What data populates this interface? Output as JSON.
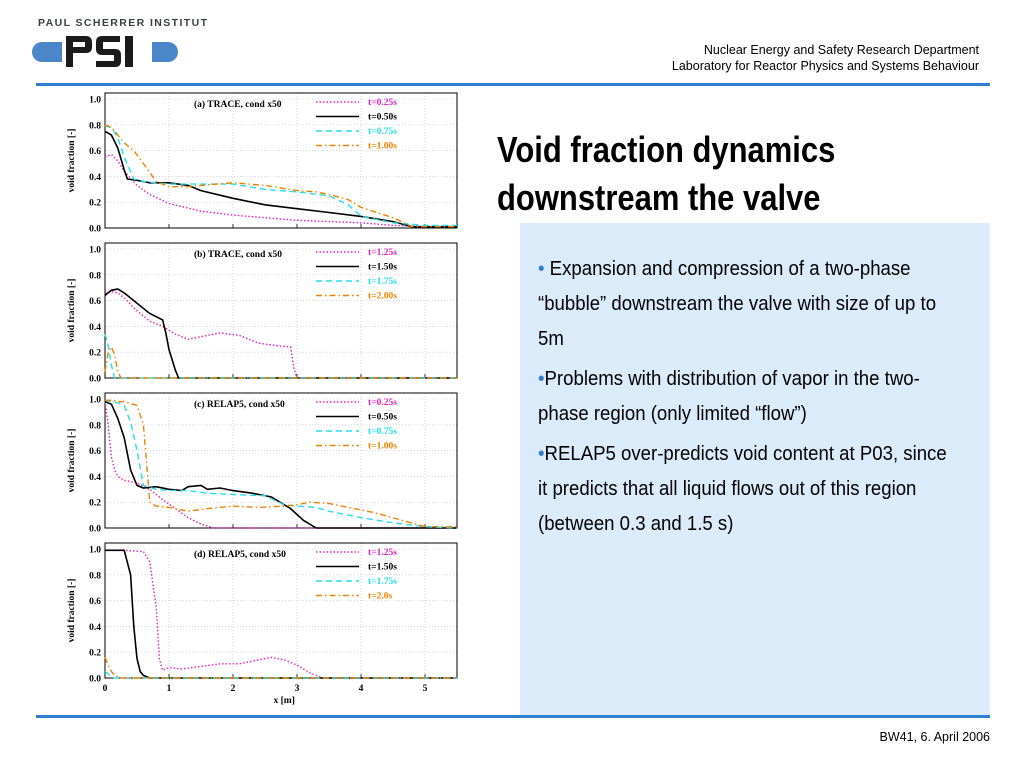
{
  "header": {
    "logo_text": "PAUL SCHERRER INSTITUT",
    "logo_mark": "PSI",
    "department_line1": "Nuclear Energy and Safety Research Department",
    "department_line2": "Laboratory for Reactor Physics and Systems Behaviour"
  },
  "title": {
    "line1": "Void fraction dynamics",
    "line2": "downstream the valve"
  },
  "bullets": [
    {
      "marker": "• ",
      "text": "Expansion and compression of a two-phase “bubble” downstream the valve with size of up to 5m"
    },
    {
      "marker": "•",
      "text": "Problems with distribution of vapor in the two-phase region (only limited “flow”)"
    },
    {
      "marker": "•",
      "text": "RELAP5 over-predicts void content at P03, since it predicts that all liquid flows out of this region (between 0.3 and 1.5 s)"
    }
  ],
  "footer": {
    "text": "BW41, 6. April 2006"
  },
  "colors": {
    "accent": "#2f7fd0",
    "panel": "#dcebfa",
    "magenta": "#e020c0",
    "black": "#000000",
    "cyan": "#20e0e8",
    "orange": "#f08000"
  },
  "chart_data": [
    {
      "type": "line",
      "title": "(a) TRACE, cond x50",
      "ylabel": "void fraction [-]",
      "xlim": [
        0,
        5.5
      ],
      "ylim": [
        0,
        1.0
      ],
      "yticks": [
        "0.0",
        "0.2",
        "0.4",
        "0.6",
        "0.8",
        "1.0"
      ],
      "series": [
        {
          "name": "t=0.25s",
          "style": "dotted",
          "color": "#e020c0",
          "x": [
            0,
            0.1,
            0.2,
            0.3,
            0.5,
            0.7,
            1.0,
            1.5,
            2.0,
            2.5,
            3.0,
            3.5,
            4.0,
            4.5,
            5.0,
            5.5
          ],
          "y": [
            0.55,
            0.57,
            0.52,
            0.44,
            0.33,
            0.26,
            0.19,
            0.13,
            0.1,
            0.08,
            0.06,
            0.05,
            0.04,
            0.02,
            0.01,
            0.01
          ]
        },
        {
          "name": "t=0.50s",
          "style": "solid",
          "color": "#000000",
          "x": [
            0,
            0.1,
            0.2,
            0.3,
            0.35,
            0.5,
            0.7,
            1.0,
            1.3,
            1.5,
            2.0,
            2.5,
            3.0,
            3.5,
            4.0,
            4.5,
            4.8,
            5.5
          ],
          "y": [
            0.75,
            0.72,
            0.62,
            0.45,
            0.38,
            0.37,
            0.35,
            0.35,
            0.33,
            0.29,
            0.23,
            0.18,
            0.15,
            0.12,
            0.09,
            0.05,
            0.01,
            0.01
          ]
        },
        {
          "name": "t=0.75s",
          "style": "dashed",
          "color": "#20e0e8",
          "x": [
            0,
            0.1,
            0.2,
            0.3,
            0.45,
            0.6,
            0.8,
            1.0,
            1.3,
            1.5,
            2.0,
            2.5,
            3.0,
            3.5,
            3.8,
            4.0,
            4.5,
            5.0,
            5.5
          ],
          "y": [
            0.79,
            0.78,
            0.7,
            0.55,
            0.38,
            0.36,
            0.35,
            0.34,
            0.34,
            0.34,
            0.34,
            0.3,
            0.28,
            0.25,
            0.18,
            0.09,
            0.04,
            0.02,
            0.02
          ]
        },
        {
          "name": "t=1.00s",
          "style": "dashdot",
          "color": "#f08000",
          "x": [
            0,
            0.1,
            0.2,
            0.3,
            0.45,
            0.6,
            0.8,
            1.0,
            1.3,
            1.5,
            2.0,
            2.5,
            3.0,
            3.3,
            3.5,
            3.8,
            4.0,
            4.5,
            4.8,
            5.5
          ],
          "y": [
            0.8,
            0.78,
            0.72,
            0.66,
            0.6,
            0.5,
            0.36,
            0.32,
            0.32,
            0.33,
            0.35,
            0.33,
            0.29,
            0.28,
            0.26,
            0.22,
            0.16,
            0.08,
            0.01,
            0.01
          ]
        }
      ]
    },
    {
      "type": "line",
      "title": "(b) TRACE, cond x50",
      "ylabel": "void fraction [-]",
      "xlim": [
        0,
        5.5
      ],
      "ylim": [
        0,
        1.0
      ],
      "yticks": [
        "0.0",
        "0.2",
        "0.4",
        "0.6",
        "0.8",
        "1.0"
      ],
      "series": [
        {
          "name": "t=1.25s",
          "style": "dotted",
          "color": "#e020c0",
          "x": [
            0,
            0.1,
            0.2,
            0.3,
            0.5,
            0.7,
            0.9,
            1.1,
            1.3,
            1.5,
            1.8,
            2.1,
            2.4,
            2.7,
            2.9,
            2.95,
            3.0,
            5.5
          ],
          "y": [
            0.66,
            0.67,
            0.66,
            0.62,
            0.52,
            0.44,
            0.4,
            0.34,
            0.3,
            0.32,
            0.35,
            0.33,
            0.27,
            0.25,
            0.24,
            0.08,
            0.0,
            0.0
          ]
        },
        {
          "name": "t=1.50s",
          "style": "solid",
          "color": "#000000",
          "x": [
            0,
            0.1,
            0.2,
            0.3,
            0.5,
            0.7,
            0.9,
            0.95,
            1.0,
            1.1,
            1.15,
            5.5
          ],
          "y": [
            0.64,
            0.68,
            0.69,
            0.66,
            0.58,
            0.5,
            0.45,
            0.35,
            0.22,
            0.06,
            0.0,
            0.0
          ]
        },
        {
          "name": "t=1.75s",
          "style": "dashed",
          "color": "#20e0e8",
          "x": [
            0,
            0.05,
            0.1,
            0.15,
            0.2,
            5.5
          ],
          "y": [
            0.34,
            0.25,
            0.1,
            0.0,
            0.0,
            0.0
          ]
        },
        {
          "name": "t=2.00s",
          "style": "dashdot",
          "color": "#f08000",
          "x": [
            0,
            0.05,
            0.1,
            0.15,
            0.2,
            0.25,
            5.5
          ],
          "y": [
            0.05,
            0.2,
            0.24,
            0.18,
            0.05,
            0.0,
            0.0
          ]
        }
      ]
    },
    {
      "type": "line",
      "title": "(c) RELAP5, cond x50",
      "ylabel": "void fraction [-]",
      "xlim": [
        0,
        5.5
      ],
      "ylim": [
        0,
        1.0
      ],
      "yticks": [
        "0.0",
        "0.2",
        "0.4",
        "0.6",
        "0.8",
        "1.0"
      ],
      "series": [
        {
          "name": "t=0.25s",
          "style": "dotted",
          "color": "#e020c0",
          "x": [
            0,
            0.05,
            0.1,
            0.15,
            0.2,
            0.3,
            0.5,
            0.7,
            0.9,
            1.1,
            1.3,
            1.5,
            1.7,
            2.0,
            5.5
          ],
          "y": [
            0.98,
            0.8,
            0.55,
            0.45,
            0.4,
            0.37,
            0.35,
            0.3,
            0.22,
            0.15,
            0.08,
            0.03,
            0.0,
            0.0,
            0.0
          ]
        },
        {
          "name": "t=0.50s",
          "style": "solid",
          "color": "#000000",
          "x": [
            0,
            0.1,
            0.2,
            0.3,
            0.4,
            0.5,
            0.6,
            0.8,
            1.0,
            1.2,
            1.3,
            1.5,
            1.6,
            1.8,
            2.0,
            2.3,
            2.6,
            2.9,
            3.1,
            3.3,
            5.5
          ],
          "y": [
            0.98,
            0.96,
            0.85,
            0.7,
            0.45,
            0.33,
            0.31,
            0.32,
            0.3,
            0.29,
            0.32,
            0.33,
            0.3,
            0.31,
            0.29,
            0.27,
            0.24,
            0.15,
            0.06,
            0.0,
            0.0
          ]
        },
        {
          "name": "t=0.75s",
          "style": "dashed",
          "color": "#20e0e8",
          "x": [
            0,
            0.1,
            0.2,
            0.3,
            0.4,
            0.5,
            0.6,
            0.8,
            1.0,
            1.3,
            1.6,
            2.0,
            2.5,
            2.8,
            3.0,
            3.3,
            3.5,
            4.0,
            4.5,
            5.0,
            5.5
          ],
          "y": [
            0.99,
            0.98,
            0.97,
            0.95,
            0.82,
            0.6,
            0.33,
            0.3,
            0.29,
            0.29,
            0.27,
            0.26,
            0.25,
            0.18,
            0.17,
            0.16,
            0.13,
            0.08,
            0.04,
            0.01,
            0.0
          ]
        },
        {
          "name": "t=1.00s",
          "style": "dashdot",
          "color": "#f08000",
          "x": [
            0,
            0.1,
            0.2,
            0.3,
            0.5,
            0.6,
            0.7,
            0.8,
            1.0,
            1.3,
            1.6,
            2.0,
            2.4,
            2.8,
            3.0,
            3.2,
            3.5,
            3.8,
            4.2,
            4.5,
            5.0,
            5.5
          ],
          "y": [
            0.99,
            0.99,
            0.98,
            0.98,
            0.95,
            0.8,
            0.2,
            0.17,
            0.16,
            0.13,
            0.15,
            0.17,
            0.16,
            0.17,
            0.18,
            0.2,
            0.19,
            0.16,
            0.12,
            0.08,
            0.01,
            0.01
          ]
        }
      ]
    },
    {
      "type": "line",
      "title": "(d) RELAP5, cond x50",
      "ylabel": "void fraction [-]",
      "xlabel": "x [m]",
      "xlim": [
        0,
        5.5
      ],
      "ylim": [
        0,
        1.0
      ],
      "xticks": [
        "0",
        "1",
        "2",
        "3",
        "4",
        "5"
      ],
      "yticks": [
        "0.0",
        "0.2",
        "0.4",
        "0.6",
        "0.8",
        "1.0"
      ],
      "series": [
        {
          "name": "t=1.25s",
          "style": "dotted",
          "color": "#e020c0",
          "x": [
            0,
            0.3,
            0.6,
            0.7,
            0.8,
            0.85,
            0.9,
            1.0,
            1.2,
            1.5,
            1.8,
            2.1,
            2.4,
            2.6,
            2.8,
            3.0,
            3.2,
            3.4,
            3.5,
            5.5
          ],
          "y": [
            0.99,
            0.99,
            0.98,
            0.9,
            0.55,
            0.15,
            0.06,
            0.08,
            0.07,
            0.09,
            0.11,
            0.11,
            0.14,
            0.16,
            0.14,
            0.1,
            0.04,
            0.0,
            0.0,
            0.0
          ]
        },
        {
          "name": "t=1.50s",
          "style": "solid",
          "color": "#000000",
          "x": [
            0,
            0.2,
            0.3,
            0.4,
            0.45,
            0.5,
            0.55,
            0.6,
            0.7,
            5.5
          ],
          "y": [
            0.99,
            0.99,
            0.99,
            0.8,
            0.4,
            0.15,
            0.05,
            0.02,
            0.0,
            0.0
          ]
        },
        {
          "name": "t=1.75s",
          "style": "dashed",
          "color": "#20e0e8",
          "x": [
            0,
            0.05,
            0.1,
            0.15,
            5.5
          ],
          "y": [
            0.05,
            0.03,
            0.01,
            0.0,
            0.0
          ]
        },
        {
          "name": "t=2.0s",
          "style": "dashdot",
          "color": "#f08000",
          "x": [
            0,
            0.05,
            0.1,
            0.15,
            0.25,
            5.5
          ],
          "y": [
            0.16,
            0.1,
            0.05,
            0.02,
            0.0,
            0.0
          ]
        }
      ]
    }
  ]
}
